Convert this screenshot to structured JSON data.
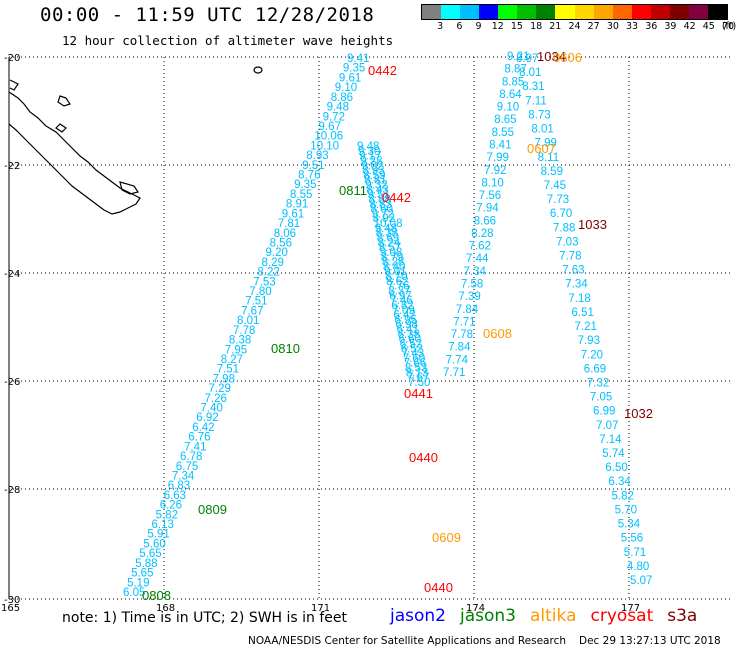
{
  "header": {
    "title": "00:00 - 11:59 UTC 12/28/2018",
    "subtitle": "12 hour collection of altimeter wave heights"
  },
  "color_scale": {
    "labels": [
      "3",
      "6",
      "9",
      "12",
      "15",
      "18",
      "21",
      "24",
      "27",
      "30",
      "33",
      "36",
      "39",
      "42",
      "45",
      "70"
    ],
    "unit": "(ft)",
    "colors": [
      "#808080",
      "#00ffff",
      "#00bfff",
      "#0000ff",
      "#00ff00",
      "#00c000",
      "#008000",
      "#ffff00",
      "#ffd700",
      "#ffa500",
      "#ff6600",
      "#ff0000",
      "#c00000",
      "#800000",
      "#800040",
      "#000000"
    ]
  },
  "map": {
    "lat_labels": [
      "-20",
      "-22",
      "-24",
      "-26",
      "-28",
      "-30"
    ],
    "lon_labels": [
      "165",
      "168",
      "171",
      "174",
      "177"
    ],
    "tracks": [
      {
        "name": "track-west",
        "color": "#00bfff",
        "values": [
          "6.05",
          "5.19",
          "5.65",
          "5.88",
          "5.65",
          "5.60",
          "5.91",
          "6.13",
          "5.82",
          "6.26",
          "6.63",
          "6.83",
          "7.34",
          "6.75",
          "6.78",
          "7.41",
          "6.76",
          "6.42",
          "6.92",
          "7.40",
          "7.26",
          "7.29",
          "7.98",
          "7.51",
          "8.27",
          "7.95",
          "8.38",
          "7.78",
          "8.01",
          "7.67",
          "7.51",
          "7.80",
          "7.53",
          "8.22",
          "8.29",
          "9.20",
          "8.56",
          "8.06",
          "7.81",
          "9.61",
          "8.91",
          "8.55",
          "9.35",
          "8.76",
          "9.51",
          "8.93",
          "10.10",
          "10.06",
          "9.67",
          "9.72",
          "9.48",
          "8.86",
          "9.10",
          "9.61",
          "9.35",
          "9.41"
        ]
      },
      {
        "name": "track-central",
        "color": "#00bfff",
        "values": [
          "9.48",
          "9.30",
          "9.17",
          "9.28",
          "9.02",
          "8.93",
          "8.59",
          "8.81",
          "9.32",
          "8.43",
          "9.51",
          "8.88",
          "8.83",
          "8.60",
          "9.72",
          "8.92",
          "10.08",
          "9.48",
          "8.38",
          "8.69",
          "8.24",
          "8.57",
          "9.08",
          "8.79",
          "8.28",
          "8.40",
          "9.01",
          "8.70",
          "8.62",
          "7.76",
          "8.37",
          "6.97",
          "7.46",
          "6.82",
          "7.09",
          "6.42",
          "6.95",
          "6.98",
          "6.41",
          "6.38",
          "6.60",
          "6.52",
          "6.52",
          "7.43",
          "7.60",
          "7.66",
          "8.53",
          "8.13",
          "7.67",
          "7.50"
        ]
      },
      {
        "name": "track-east",
        "color": "#00bfff",
        "values": [
          "9.21",
          "8.87",
          "8.85",
          "8.64",
          "9.10",
          "8.65",
          "8.55",
          "8.41",
          "7.99",
          "7.92",
          "8.10",
          "7.56",
          "7.94",
          "8.66",
          "8.28",
          "7.62",
          "7.44",
          "7.34",
          "7.58",
          "7.39",
          "7.84",
          "7.71",
          "7.78",
          "7.84",
          "7.74",
          "7.71"
        ]
      },
      {
        "name": "track-far-east",
        "color": "#00bfff",
        "values": [
          "8.97",
          "8.01",
          "8.31",
          "7.11",
          "8.73",
          "8.01",
          "7.99",
          "8.11",
          "8.59",
          "7.45",
          "7.73",
          "6.70",
          "7.88",
          "7.03",
          "7.78",
          "7.63",
          "7.34",
          "7.18",
          "6.51",
          "7.21",
          "7.93",
          "7.20",
          "6.69",
          "7.32",
          "7.05",
          "6.99",
          "7.07",
          "7.14",
          "5.74",
          "6.50",
          "6.34",
          "5.82",
          "5.70",
          "5.34",
          "5.56",
          "5.71",
          "4.80",
          "5.07"
        ]
      }
    ],
    "pass_labels": [
      {
        "text": "0442",
        "color": "#ff0000"
      },
      {
        "text": "0811",
        "color": "#008000"
      },
      {
        "text": "0442",
        "color": "#ff0000"
      },
      {
        "text": "0810",
        "color": "#008000"
      },
      {
        "text": "0441",
        "color": "#ff0000"
      },
      {
        "text": "0440",
        "color": "#ff0000"
      },
      {
        "text": "0809",
        "color": "#008000"
      },
      {
        "text": "0609",
        "color": "#ff9900"
      },
      {
        "text": "0808",
        "color": "#008000"
      },
      {
        "text": "0440",
        "color": "#ff0000"
      },
      {
        "text": "1034",
        "color": "#800000"
      },
      {
        "text": "0606",
        "color": "#ff9900"
      },
      {
        "text": "0607",
        "color": "#ff9900"
      },
      {
        "text": "1033",
        "color": "#800000"
      },
      {
        "text": "0608",
        "color": "#ff9900"
      },
      {
        "text": "1032",
        "color": "#800000"
      }
    ]
  },
  "footer": {
    "note": "note: 1) Time is in UTC; 2) SWH is in feet",
    "legend": [
      {
        "label": "jason2",
        "color": "#0000ff"
      },
      {
        "label": "jason3",
        "color": "#008000"
      },
      {
        "label": "altika",
        "color": "#ff9900"
      },
      {
        "label": "cryosat",
        "color": "#ff0000"
      },
      {
        "label": "s3a",
        "color": "#800000"
      }
    ],
    "credit": "NOAA/NESDIS Center for Satellite Applications and Research",
    "timestamp": "Dec 29 13:27:13 UTC 2018"
  }
}
